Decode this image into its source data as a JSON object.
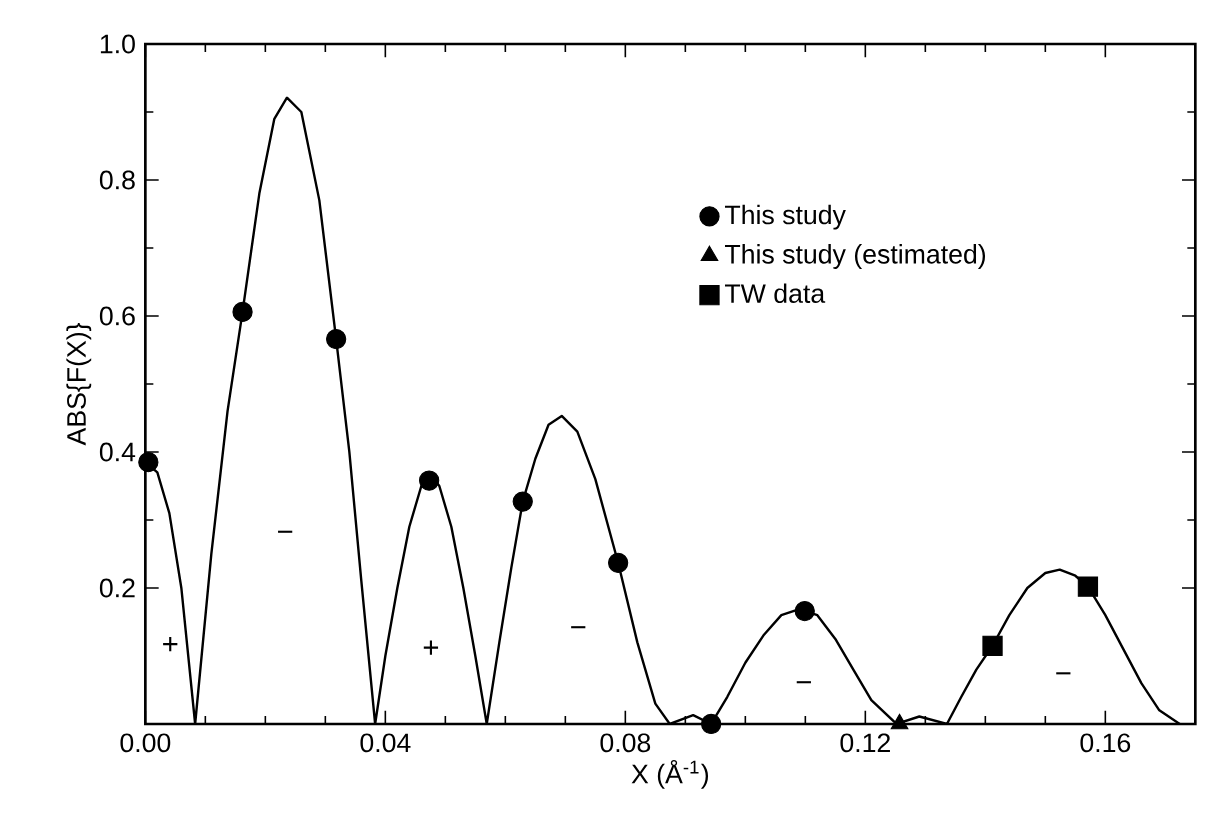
{
  "chart_data": {
    "type": "scatter",
    "xlabel": "X (Å$^{-1}$)",
    "ylabel": "ABS{F(X)}",
    "xlim": [
      0,
      0.175
    ],
    "ylim": [
      0,
      1.0
    ],
    "xticks": [
      {
        "value": 0,
        "label": "0.00"
      },
      {
        "value": 0.04,
        "label": "0.04"
      },
      {
        "value": 0.08,
        "label": "0.08"
      },
      {
        "value": 0.12,
        "label": "0.12"
      },
      {
        "value": 0.16,
        "label": "0.16"
      }
    ],
    "yticks": [
      {
        "value": 0.2,
        "label": "0.2"
      },
      {
        "value": 0.4,
        "label": "0.4"
      },
      {
        "value": 0.6,
        "label": "0.6"
      },
      {
        "value": 0.8,
        "label": "0.8"
      },
      {
        "value": 1.0,
        "label": "1.0"
      }
    ],
    "grid": false,
    "legend": "right",
    "series": [
      {
        "type": "line",
        "color": "#000000",
        "marker": "none",
        "line_style": "solid",
        "x": [
          0,
          0.002,
          0.004,
          0.006,
          0.0083,
          0.011,
          0.0137,
          0.0162,
          0.019,
          0.0215,
          0.0236,
          0.026,
          0.029,
          0.0318,
          0.034,
          0.036,
          0.0383,
          0.04,
          0.042,
          0.044,
          0.046,
          0.0474,
          0.049,
          0.051,
          0.053,
          0.055,
          0.0569,
          0.059,
          0.061,
          0.0629,
          0.065,
          0.0672,
          0.0694,
          0.072,
          0.075,
          0.0788,
          0.082,
          0.085,
          0.0874,
          0.0913,
          0.0943,
          0.097,
          0.1,
          0.103,
          0.106,
          0.109,
          0.112,
          0.115,
          0.118,
          0.121,
          0.1252,
          0.129,
          0.1336,
          0.136,
          0.1385,
          0.1412,
          0.144,
          0.147,
          0.15,
          0.1524,
          0.155,
          0.1571,
          0.16,
          0.163,
          0.166,
          0.169,
          0.1724
        ],
        "values": [
          0.385,
          0.37,
          0.31,
          0.2,
          0,
          0.25,
          0.46,
          0.606,
          0.78,
          0.89,
          0.921,
          0.9,
          0.77,
          0.566,
          0.4,
          0.21,
          0,
          0.1,
          0.2,
          0.29,
          0.35,
          0.368,
          0.35,
          0.29,
          0.2,
          0.1,
          0,
          0.12,
          0.23,
          0.327,
          0.39,
          0.44,
          0.453,
          0.43,
          0.36,
          0.237,
          0.12,
          0.03,
          0,
          0.013,
          0,
          0.04,
          0.09,
          0.13,
          0.16,
          0.169,
          0.16,
          0.125,
          0.08,
          0.035,
          0,
          0.011,
          0,
          0.04,
          0.08,
          0.115,
          0.16,
          0.2,
          0.222,
          0.227,
          0.218,
          0.202,
          0.16,
          0.11,
          0.06,
          0.02,
          0
        ]
      },
      {
        "type": "scatter",
        "name": "This study",
        "color": "#000000",
        "marker": "circle",
        "x": [
          0.0005,
          0.0162,
          0.0318,
          0.0473,
          0.0629,
          0.0788,
          0.0943,
          0.1099
        ],
        "values": [
          0.385,
          0.606,
          0.566,
          0.358,
          0.327,
          0.237,
          0.0,
          0.166
        ]
      },
      {
        "type": "scatter",
        "name": "This study (estimated)",
        "color": "#000000",
        "marker": "triangle",
        "x": [
          0.1257
        ],
        "values": [
          0.0
        ]
      },
      {
        "type": "scatter",
        "name": "TW data",
        "color": "#000000",
        "marker": "square",
        "x": [
          0.1412,
          0.1571
        ],
        "values": [
          0.115,
          0.202
        ]
      }
    ],
    "annotations": [
      "+",
      "−",
      "+",
      "−",
      "−",
      "−"
    ]
  }
}
